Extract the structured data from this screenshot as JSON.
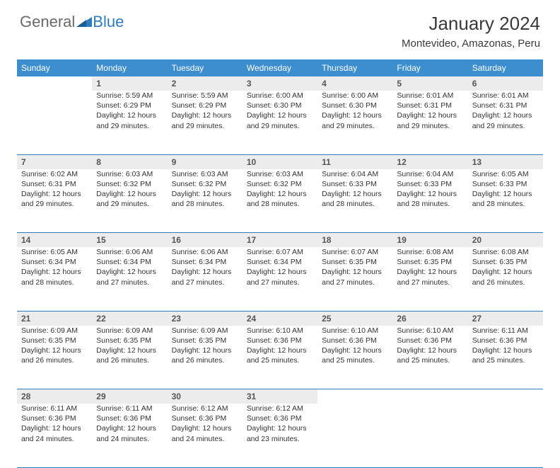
{
  "logo": {
    "word1": "General",
    "word2": "Blue"
  },
  "title": "January 2024",
  "location": "Montevideo, Amazonas, Peru",
  "colors": {
    "header_bg": "#3d8ecf",
    "header_text": "#ffffff",
    "daynum_bg": "#ececec",
    "border": "#2f7bbf",
    "logo_gray": "#6a6a6a",
    "logo_blue": "#2f7bbf",
    "text": "#333333"
  },
  "typography": {
    "title_fontsize": 26,
    "location_fontsize": 15,
    "header_fontsize": 12,
    "cell_fontsize": 10.5
  },
  "weekdays": [
    "Sunday",
    "Monday",
    "Tuesday",
    "Wednesday",
    "Thursday",
    "Friday",
    "Saturday"
  ],
  "weeks": [
    [
      null,
      {
        "day": "1",
        "sunrise": "Sunrise: 5:59 AM",
        "sunset": "Sunset: 6:29 PM",
        "d1": "Daylight: 12 hours",
        "d2": "and 29 minutes."
      },
      {
        "day": "2",
        "sunrise": "Sunrise: 5:59 AM",
        "sunset": "Sunset: 6:29 PM",
        "d1": "Daylight: 12 hours",
        "d2": "and 29 minutes."
      },
      {
        "day": "3",
        "sunrise": "Sunrise: 6:00 AM",
        "sunset": "Sunset: 6:30 PM",
        "d1": "Daylight: 12 hours",
        "d2": "and 29 minutes."
      },
      {
        "day": "4",
        "sunrise": "Sunrise: 6:00 AM",
        "sunset": "Sunset: 6:30 PM",
        "d1": "Daylight: 12 hours",
        "d2": "and 29 minutes."
      },
      {
        "day": "5",
        "sunrise": "Sunrise: 6:01 AM",
        "sunset": "Sunset: 6:31 PM",
        "d1": "Daylight: 12 hours",
        "d2": "and 29 minutes."
      },
      {
        "day": "6",
        "sunrise": "Sunrise: 6:01 AM",
        "sunset": "Sunset: 6:31 PM",
        "d1": "Daylight: 12 hours",
        "d2": "and 29 minutes."
      }
    ],
    [
      {
        "day": "7",
        "sunrise": "Sunrise: 6:02 AM",
        "sunset": "Sunset: 6:31 PM",
        "d1": "Daylight: 12 hours",
        "d2": "and 29 minutes."
      },
      {
        "day": "8",
        "sunrise": "Sunrise: 6:03 AM",
        "sunset": "Sunset: 6:32 PM",
        "d1": "Daylight: 12 hours",
        "d2": "and 29 minutes."
      },
      {
        "day": "9",
        "sunrise": "Sunrise: 6:03 AM",
        "sunset": "Sunset: 6:32 PM",
        "d1": "Daylight: 12 hours",
        "d2": "and 28 minutes."
      },
      {
        "day": "10",
        "sunrise": "Sunrise: 6:03 AM",
        "sunset": "Sunset: 6:32 PM",
        "d1": "Daylight: 12 hours",
        "d2": "and 28 minutes."
      },
      {
        "day": "11",
        "sunrise": "Sunrise: 6:04 AM",
        "sunset": "Sunset: 6:33 PM",
        "d1": "Daylight: 12 hours",
        "d2": "and 28 minutes."
      },
      {
        "day": "12",
        "sunrise": "Sunrise: 6:04 AM",
        "sunset": "Sunset: 6:33 PM",
        "d1": "Daylight: 12 hours",
        "d2": "and 28 minutes."
      },
      {
        "day": "13",
        "sunrise": "Sunrise: 6:05 AM",
        "sunset": "Sunset: 6:33 PM",
        "d1": "Daylight: 12 hours",
        "d2": "and 28 minutes."
      }
    ],
    [
      {
        "day": "14",
        "sunrise": "Sunrise: 6:05 AM",
        "sunset": "Sunset: 6:34 PM",
        "d1": "Daylight: 12 hours",
        "d2": "and 28 minutes."
      },
      {
        "day": "15",
        "sunrise": "Sunrise: 6:06 AM",
        "sunset": "Sunset: 6:34 PM",
        "d1": "Daylight: 12 hours",
        "d2": "and 27 minutes."
      },
      {
        "day": "16",
        "sunrise": "Sunrise: 6:06 AM",
        "sunset": "Sunset: 6:34 PM",
        "d1": "Daylight: 12 hours",
        "d2": "and 27 minutes."
      },
      {
        "day": "17",
        "sunrise": "Sunrise: 6:07 AM",
        "sunset": "Sunset: 6:34 PM",
        "d1": "Daylight: 12 hours",
        "d2": "and 27 minutes."
      },
      {
        "day": "18",
        "sunrise": "Sunrise: 6:07 AM",
        "sunset": "Sunset: 6:35 PM",
        "d1": "Daylight: 12 hours",
        "d2": "and 27 minutes."
      },
      {
        "day": "19",
        "sunrise": "Sunrise: 6:08 AM",
        "sunset": "Sunset: 6:35 PM",
        "d1": "Daylight: 12 hours",
        "d2": "and 27 minutes."
      },
      {
        "day": "20",
        "sunrise": "Sunrise: 6:08 AM",
        "sunset": "Sunset: 6:35 PM",
        "d1": "Daylight: 12 hours",
        "d2": "and 26 minutes."
      }
    ],
    [
      {
        "day": "21",
        "sunrise": "Sunrise: 6:09 AM",
        "sunset": "Sunset: 6:35 PM",
        "d1": "Daylight: 12 hours",
        "d2": "and 26 minutes."
      },
      {
        "day": "22",
        "sunrise": "Sunrise: 6:09 AM",
        "sunset": "Sunset: 6:35 PM",
        "d1": "Daylight: 12 hours",
        "d2": "and 26 minutes."
      },
      {
        "day": "23",
        "sunrise": "Sunrise: 6:09 AM",
        "sunset": "Sunset: 6:35 PM",
        "d1": "Daylight: 12 hours",
        "d2": "and 26 minutes."
      },
      {
        "day": "24",
        "sunrise": "Sunrise: 6:10 AM",
        "sunset": "Sunset: 6:36 PM",
        "d1": "Daylight: 12 hours",
        "d2": "and 25 minutes."
      },
      {
        "day": "25",
        "sunrise": "Sunrise: 6:10 AM",
        "sunset": "Sunset: 6:36 PM",
        "d1": "Daylight: 12 hours",
        "d2": "and 25 minutes."
      },
      {
        "day": "26",
        "sunrise": "Sunrise: 6:10 AM",
        "sunset": "Sunset: 6:36 PM",
        "d1": "Daylight: 12 hours",
        "d2": "and 25 minutes."
      },
      {
        "day": "27",
        "sunrise": "Sunrise: 6:11 AM",
        "sunset": "Sunset: 6:36 PM",
        "d1": "Daylight: 12 hours",
        "d2": "and 25 minutes."
      }
    ],
    [
      {
        "day": "28",
        "sunrise": "Sunrise: 6:11 AM",
        "sunset": "Sunset: 6:36 PM",
        "d1": "Daylight: 12 hours",
        "d2": "and 24 minutes."
      },
      {
        "day": "29",
        "sunrise": "Sunrise: 6:11 AM",
        "sunset": "Sunset: 6:36 PM",
        "d1": "Daylight: 12 hours",
        "d2": "and 24 minutes."
      },
      {
        "day": "30",
        "sunrise": "Sunrise: 6:12 AM",
        "sunset": "Sunset: 6:36 PM",
        "d1": "Daylight: 12 hours",
        "d2": "and 24 minutes."
      },
      {
        "day": "31",
        "sunrise": "Sunrise: 6:12 AM",
        "sunset": "Sunset: 6:36 PM",
        "d1": "Daylight: 12 hours",
        "d2": "and 23 minutes."
      },
      null,
      null,
      null
    ]
  ]
}
